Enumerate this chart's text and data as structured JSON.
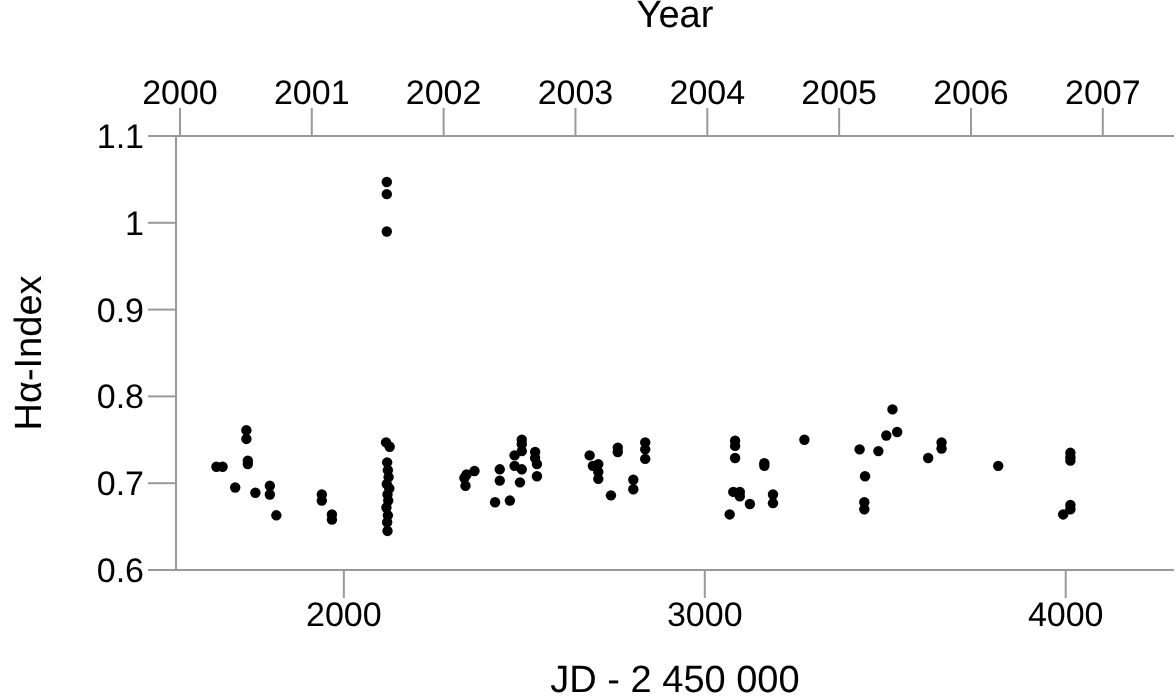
{
  "chart_data": {
    "type": "scatter",
    "xlabel": "JD - 2 450 000",
    "ylabel": "Hα-Index",
    "x2label": "Year",
    "marker": "circle",
    "grid": false,
    "x": [
      1647,
      1664,
      1699,
      1730,
      1730,
      1734,
      1734,
      1755,
      1795,
      1795,
      1813,
      1939,
      1939,
      1967,
      1967,
      2117,
      2127,
      2120,
      2122,
      2124,
      2119,
      2126,
      2121,
      2123,
      2118,
      2122,
      2120,
      2121,
      2119,
      2119,
      2119,
      2334,
      2337,
      2340,
      2362,
      2419,
      2432,
      2432,
      2460,
      2473,
      2473,
      2488,
      2493,
      2493,
      2493,
      2493,
      2530,
      2530,
      2535,
      2535,
      2681,
      2690,
      2705,
      2705,
      2705,
      2740,
      2759,
      2759,
      2802,
      2802,
      2835,
      2835,
      2835,
      3069,
      3079,
      3097,
      3097,
      3125,
      3084,
      3084,
      3084,
      3165,
      3165,
      3189,
      3189,
      3276,
      3429,
      3444,
      3442,
      3442,
      3481,
      3503,
      3520,
      3533,
      3619,
      3656,
      3656,
      3813,
      4013,
      4013,
      4013,
      3993,
      4013,
      4013
    ],
    "values": [
      0.719,
      0.719,
      0.695,
      0.761,
      0.751,
      0.726,
      0.722,
      0.689,
      0.697,
      0.687,
      0.663,
      0.687,
      0.68,
      0.664,
      0.658,
      0.747,
      0.742,
      0.724,
      0.715,
      0.707,
      0.699,
      0.694,
      0.687,
      0.68,
      0.672,
      0.663,
      0.655,
      0.645,
      1.047,
      1.033,
      0.99,
      0.706,
      0.697,
      0.71,
      0.714,
      0.678,
      0.716,
      0.703,
      0.68,
      0.732,
      0.72,
      0.701,
      0.75,
      0.745,
      0.737,
      0.716,
      0.736,
      0.729,
      0.722,
      0.708,
      0.732,
      0.72,
      0.722,
      0.713,
      0.705,
      0.686,
      0.741,
      0.736,
      0.704,
      0.693,
      0.747,
      0.739,
      0.728,
      0.664,
      0.69,
      0.69,
      0.685,
      0.676,
      0.749,
      0.743,
      0.729,
      0.723,
      0.72,
      0.687,
      0.677,
      0.75,
      0.739,
      0.708,
      0.678,
      0.67,
      0.737,
      0.755,
      0.785,
      0.759,
      0.729,
      0.747,
      0.74,
      0.72,
      0.735,
      0.73,
      0.726,
      0.664,
      0.675,
      0.67
    ],
    "color": "#000000",
    "xlim": [
      1535,
      4300
    ],
    "xticks": [
      2000,
      3000,
      4000
    ],
    "ylim": [
      0.6,
      1.1
    ],
    "yticks": [
      0.6,
      0.7,
      0.8,
      0.9,
      1,
      1.1
    ],
    "x2lim": [
      1999.97,
      2007.54
    ],
    "x2ticks": [
      2000,
      2001,
      2002,
      2003,
      2004,
      2005,
      2006,
      2007
    ]
  }
}
